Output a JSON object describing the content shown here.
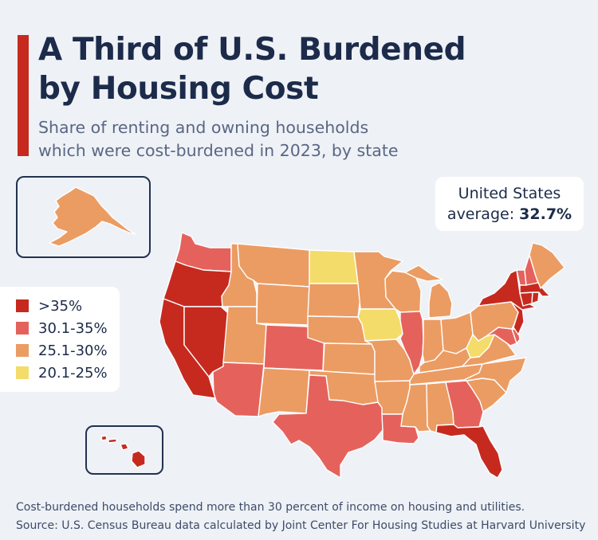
{
  "title": {
    "line1": "A Third of U.S. Burdened",
    "line2": "by Housing Cost"
  },
  "subtitle": {
    "line1": "Share of renting and owning households",
    "line2": "which were cost-burdened in 2023, by state"
  },
  "average": {
    "line1": "United States",
    "label": "average: ",
    "value": "32.7%"
  },
  "legend": [
    {
      "label": ">35%",
      "color": "#c62a1f"
    },
    {
      "label": "30.1-35%",
      "color": "#e5625c"
    },
    {
      "label": "25.1-30%",
      "color": "#eb9c63"
    },
    {
      "label": "20.1-25%",
      "color": "#f4dc6a"
    }
  ],
  "footnote": {
    "line1": "Cost-burdened households spend more than 30 percent of income on housing and utilities.",
    "line2": "Source: U.S. Census Bureau data calculated by Joint Center For Housing Studies at Harvard University"
  },
  "colors": {
    "accent": "#c62a1f",
    "navy": "#1c2b4a",
    "background": "#eef1f6",
    "border": "#ffffff"
  },
  "map_regions": [
    {
      "name": "Washington",
      "class": "30.1-35%"
    },
    {
      "name": "Oregon",
      "class": ">35%"
    },
    {
      "name": "California",
      "class": ">35%"
    },
    {
      "name": "Nevada",
      "class": ">35%"
    },
    {
      "name": "Idaho",
      "class": "25.1-30%"
    },
    {
      "name": "Montana",
      "class": "25.1-30%"
    },
    {
      "name": "Wyoming",
      "class": "25.1-30%"
    },
    {
      "name": "Utah",
      "class": "25.1-30%"
    },
    {
      "name": "Arizona",
      "class": "30.1-35%"
    },
    {
      "name": "Colorado",
      "class": "30.1-35%"
    },
    {
      "name": "New Mexico",
      "class": "25.1-30%"
    },
    {
      "name": "North Dakota",
      "class": "20.1-25%"
    },
    {
      "name": "South Dakota",
      "class": "25.1-30%"
    },
    {
      "name": "Nebraska",
      "class": "25.1-30%"
    },
    {
      "name": "Kansas",
      "class": "25.1-30%"
    },
    {
      "name": "Oklahoma",
      "class": "25.1-30%"
    },
    {
      "name": "Texas",
      "class": "30.1-35%"
    },
    {
      "name": "Minnesota",
      "class": "25.1-30%"
    },
    {
      "name": "Iowa",
      "class": "20.1-25%"
    },
    {
      "name": "Missouri",
      "class": "25.1-30%"
    },
    {
      "name": "Arkansas",
      "class": "25.1-30%"
    },
    {
      "name": "Louisiana",
      "class": "30.1-35%"
    },
    {
      "name": "Wisconsin",
      "class": "25.1-30%"
    },
    {
      "name": "Illinois",
      "class": "30.1-35%"
    },
    {
      "name": "Michigan",
      "class": "25.1-30%"
    },
    {
      "name": "Indiana",
      "class": "25.1-30%"
    },
    {
      "name": "Ohio",
      "class": "25.1-30%"
    },
    {
      "name": "Kentucky",
      "class": "25.1-30%"
    },
    {
      "name": "Tennessee",
      "class": "25.1-30%"
    },
    {
      "name": "Mississippi",
      "class": "25.1-30%"
    },
    {
      "name": "Alabama",
      "class": "25.1-30%"
    },
    {
      "name": "Georgia",
      "class": "30.1-35%"
    },
    {
      "name": "Florida",
      "class": ">35%"
    },
    {
      "name": "South Carolina",
      "class": "25.1-30%"
    },
    {
      "name": "North Carolina",
      "class": "25.1-30%"
    },
    {
      "name": "Virginia",
      "class": "25.1-30%"
    },
    {
      "name": "West Virginia",
      "class": "20.1-25%"
    },
    {
      "name": "Pennsylvania",
      "class": "25.1-30%"
    },
    {
      "name": "New York",
      "class": ">35%"
    },
    {
      "name": "New Jersey",
      "class": ">35%"
    },
    {
      "name": "Maryland",
      "class": "30.1-35%"
    },
    {
      "name": "Delaware",
      "class": "30.1-35%"
    },
    {
      "name": "Connecticut",
      "class": ">35%"
    },
    {
      "name": "Rhode Island",
      "class": ">35%"
    },
    {
      "name": "Massachusetts",
      "class": ">35%"
    },
    {
      "name": "Vermont",
      "class": "30.1-35%"
    },
    {
      "name": "New Hampshire",
      "class": "30.1-35%"
    },
    {
      "name": "Maine",
      "class": "25.1-30%"
    },
    {
      "name": "Alaska",
      "class": "25.1-30%"
    },
    {
      "name": "Hawaii",
      "class": ">35%"
    }
  ]
}
